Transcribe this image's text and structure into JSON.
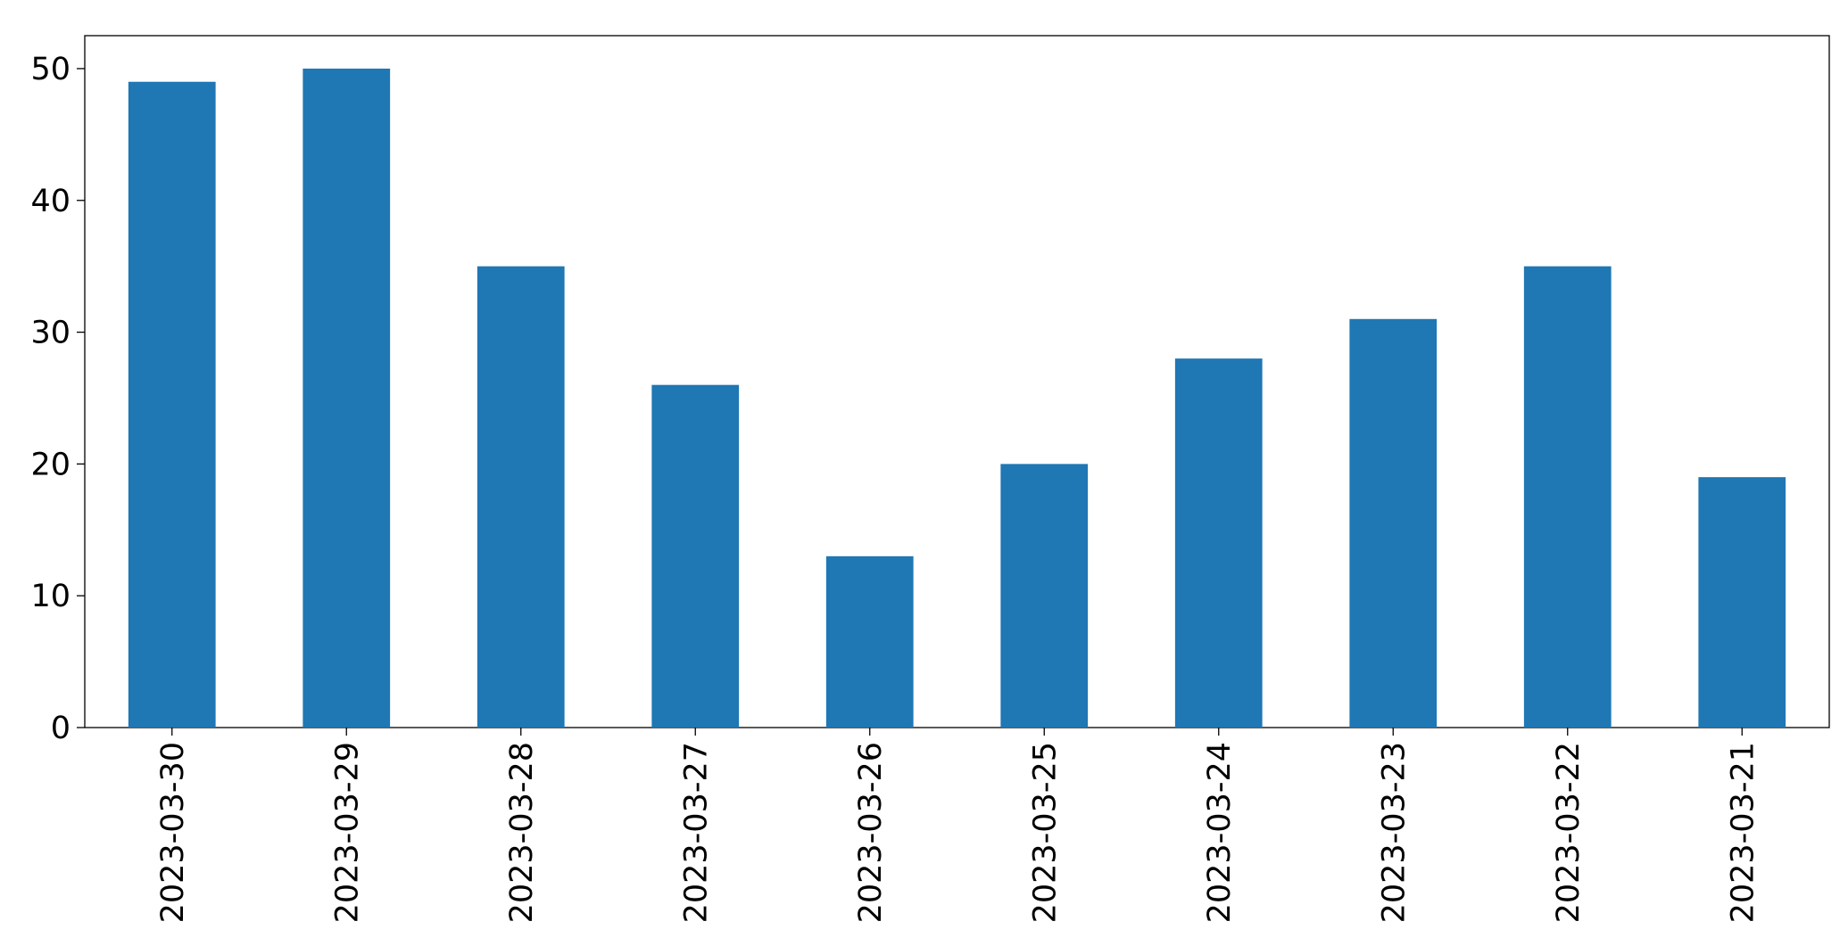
{
  "chart_data": {
    "type": "bar",
    "categories": [
      "2023-03-30",
      "2023-03-29",
      "2023-03-28",
      "2023-03-27",
      "2023-03-26",
      "2023-03-25",
      "2023-03-24",
      "2023-03-23",
      "2023-03-22",
      "2023-03-21"
    ],
    "values": [
      49,
      50,
      35,
      26,
      13,
      20,
      28,
      31,
      35,
      19
    ],
    "color": "#1f77b4",
    "ylim": [
      0,
      52.5
    ],
    "yticks": [
      0,
      10,
      20,
      30,
      40,
      50
    ],
    "grid": false
  }
}
